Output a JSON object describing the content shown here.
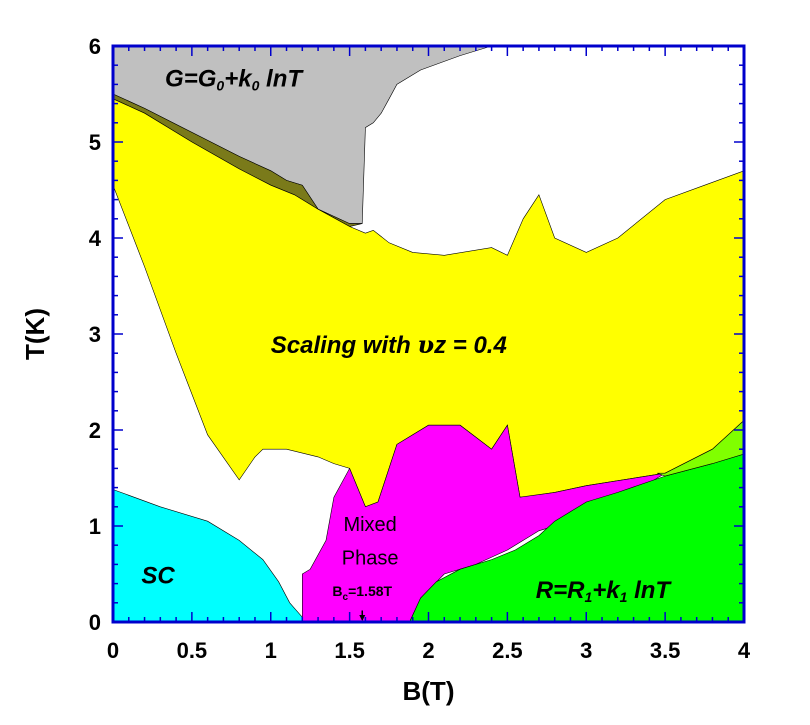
{
  "chart_data": {
    "type": "area",
    "title": "",
    "xlabel": "B(T)",
    "ylabel": "T(K)",
    "xlim": [
      0,
      4
    ],
    "ylim": [
      0,
      6
    ],
    "xticks": [
      "0",
      "0.5",
      "1",
      "1.5",
      "2",
      "2.5",
      "3",
      "3.5",
      "4"
    ],
    "yticks": [
      "0",
      "1",
      "2",
      "3",
      "4",
      "5",
      "6"
    ],
    "grid": false,
    "frame_color": "#0000cc",
    "regions": [
      {
        "id": "log-conductance",
        "label_main": "G=G",
        "label_sub1": "0",
        "label_mid": "+k",
        "label_sub2": "0",
        "label_end": " lnT",
        "color": "#c0c0c0",
        "polygon": [
          [
            0,
            5.5
          ],
          [
            0,
            6
          ],
          [
            2.4,
            6
          ],
          [
            2.2,
            5.9
          ],
          [
            1.95,
            5.75
          ],
          [
            1.8,
            5.6
          ],
          [
            1.75,
            5.45
          ],
          [
            1.7,
            5.3
          ],
          [
            1.65,
            5.2
          ],
          [
            1.6,
            5.15
          ],
          [
            1.58,
            4.15
          ],
          [
            1.5,
            4.15
          ],
          [
            1.3,
            4.3
          ],
          [
            1.2,
            4.55
          ],
          [
            1.1,
            4.6
          ],
          [
            1.0,
            4.7
          ],
          [
            0.8,
            4.85
          ],
          [
            0.5,
            5.1
          ],
          [
            0.2,
            5.35
          ]
        ]
      },
      {
        "id": "crossover-band",
        "label_main": "",
        "color": "#7a7a1a",
        "polygon": [
          [
            0,
            5.5
          ],
          [
            0.2,
            5.35
          ],
          [
            0.5,
            5.1
          ],
          [
            0.8,
            4.85
          ],
          [
            1.0,
            4.7
          ],
          [
            1.1,
            4.6
          ],
          [
            1.2,
            4.55
          ],
          [
            1.3,
            4.3
          ],
          [
            1.5,
            4.15
          ],
          [
            1.58,
            4.15
          ],
          [
            1.5,
            4.12
          ],
          [
            1.3,
            4.3
          ],
          [
            1.15,
            4.45
          ],
          [
            1.0,
            4.55
          ],
          [
            0.8,
            4.72
          ],
          [
            0.5,
            5.0
          ],
          [
            0.2,
            5.3
          ],
          [
            0,
            5.45
          ]
        ]
      },
      {
        "id": "scaling-region",
        "label_main": "Scaling with ",
        "label_greek": "υ",
        "label_end": "z = 0.4",
        "color": "#ffff00",
        "polygon": [
          [
            0,
            4.55
          ],
          [
            0,
            5.45
          ],
          [
            0.2,
            5.3
          ],
          [
            0.5,
            5.0
          ],
          [
            0.8,
            4.72
          ],
          [
            1.0,
            4.55
          ],
          [
            1.15,
            4.45
          ],
          [
            1.3,
            4.3
          ],
          [
            1.5,
            4.12
          ],
          [
            1.6,
            4.05
          ],
          [
            1.65,
            4.08
          ],
          [
            1.75,
            3.95
          ],
          [
            1.9,
            3.85
          ],
          [
            2.1,
            3.82
          ],
          [
            2.4,
            3.9
          ],
          [
            2.5,
            3.82
          ],
          [
            2.6,
            4.2
          ],
          [
            2.7,
            4.45
          ],
          [
            2.8,
            4.0
          ],
          [
            3.0,
            3.85
          ],
          [
            3.2,
            4.0
          ],
          [
            3.5,
            4.4
          ],
          [
            3.75,
            4.55
          ],
          [
            4.0,
            4.7
          ],
          [
            4.0,
            2.1
          ],
          [
            3.8,
            1.8
          ],
          [
            3.5,
            1.55
          ],
          [
            3.0,
            1.42
          ],
          [
            2.8,
            1.35
          ],
          [
            2.6,
            1.3
          ],
          [
            2.58,
            1.3
          ],
          [
            2.5,
            2.05
          ],
          [
            2.4,
            1.8
          ],
          [
            2.2,
            2.05
          ],
          [
            2.0,
            2.05
          ],
          [
            1.8,
            1.85
          ],
          [
            1.68,
            1.25
          ],
          [
            1.6,
            1.2
          ],
          [
            1.5,
            1.6
          ],
          [
            1.4,
            1.65
          ],
          [
            1.3,
            1.72
          ],
          [
            1.1,
            1.8
          ],
          [
            0.95,
            1.8
          ],
          [
            0.9,
            1.72
          ],
          [
            0.8,
            1.48
          ],
          [
            0.6,
            1.95
          ],
          [
            0.4,
            2.8
          ],
          [
            0.2,
            3.7
          ]
        ]
      },
      {
        "id": "mixed-phase",
        "label_main": "Mixed",
        "label_second": "Phase",
        "color": "#ff00ff",
        "polygon": [
          [
            1.2,
            0
          ],
          [
            1.2,
            0.5
          ],
          [
            1.25,
            0.55
          ],
          [
            1.35,
            0.85
          ],
          [
            1.4,
            1.3
          ],
          [
            1.5,
            1.6
          ],
          [
            1.6,
            1.2
          ],
          [
            1.68,
            1.25
          ],
          [
            1.8,
            1.85
          ],
          [
            2.0,
            2.05
          ],
          [
            2.2,
            2.05
          ],
          [
            2.4,
            1.8
          ],
          [
            2.5,
            2.05
          ],
          [
            2.58,
            1.3
          ],
          [
            2.8,
            1.35
          ],
          [
            3.0,
            1.42
          ],
          [
            3.5,
            1.55
          ],
          [
            3.3,
            1.35
          ],
          [
            3.1,
            1.25
          ],
          [
            2.9,
            1.05
          ],
          [
            2.7,
            0.95
          ],
          [
            2.5,
            0.75
          ],
          [
            2.3,
            0.6
          ],
          [
            2.1,
            0.5
          ],
          [
            1.95,
            0.25
          ],
          [
            1.88,
            0
          ]
        ]
      },
      {
        "id": "log-resistance",
        "label_main": "R=R",
        "label_sub1": "1",
        "label_mid": "+k",
        "label_sub2": "1",
        "label_end": " lnT",
        "color": "#00ff00",
        "polygon": [
          [
            1.88,
            0
          ],
          [
            4.0,
            0
          ],
          [
            4.0,
            1.75
          ],
          [
            3.8,
            1.65
          ],
          [
            3.5,
            1.52
          ],
          [
            3.2,
            1.35
          ],
          [
            3.0,
            1.25
          ],
          [
            2.8,
            1.05
          ],
          [
            2.7,
            0.9
          ],
          [
            2.55,
            0.75
          ],
          [
            2.4,
            0.65
          ],
          [
            2.2,
            0.55
          ],
          [
            2.05,
            0.42
          ],
          [
            1.95,
            0.25
          ]
        ]
      },
      {
        "id": "upper-crossover",
        "label_main": "",
        "color": "#80ff00",
        "polygon": [
          [
            3.45,
            1.55
          ],
          [
            3.5,
            1.55
          ],
          [
            3.8,
            1.8
          ],
          [
            4.0,
            2.1
          ],
          [
            4.0,
            1.75
          ],
          [
            3.8,
            1.65
          ],
          [
            3.5,
            1.52
          ]
        ]
      },
      {
        "id": "superconductor",
        "label_main": "SC",
        "color": "#00ffff",
        "polygon": [
          [
            0,
            0
          ],
          [
            0,
            1.38
          ],
          [
            0.3,
            1.2
          ],
          [
            0.6,
            1.05
          ],
          [
            0.8,
            0.85
          ],
          [
            0.95,
            0.65
          ],
          [
            1.05,
            0.42
          ],
          [
            1.12,
            0.2
          ],
          [
            1.2,
            0.05
          ],
          [
            1.2,
            0
          ]
        ]
      }
    ],
    "annotation": {
      "label_main": "B",
      "label_sub": "c",
      "label_end": "=1.58T",
      "x": 1.58,
      "y": 0.12
    }
  }
}
